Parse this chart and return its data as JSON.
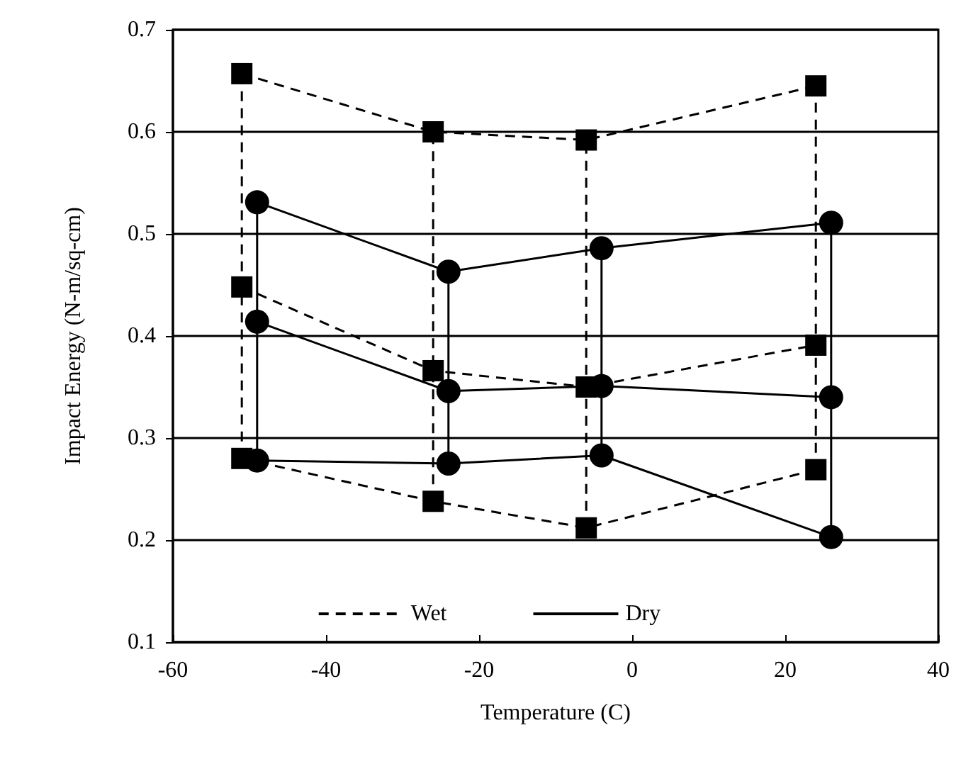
{
  "chart_data": {
    "type": "line",
    "xlabel": "Temperature (C)",
    "ylabel": "Impact Energy (N-m/sq-cm)",
    "xlim": [
      -60,
      40
    ],
    "xticks": [
      -60,
      -40,
      -20,
      0,
      20,
      40
    ],
    "ylim": [
      0.1,
      0.7
    ],
    "yticks": [
      0.1,
      0.2,
      0.3,
      0.4,
      0.5,
      0.6,
      0.7
    ],
    "grid": "y",
    "legend": "bottom",
    "series": [
      {
        "name": "Wet",
        "color": "#000000",
        "marker": "square",
        "line_style": "dashed",
        "x": [
          -51,
          -26,
          -6,
          24
        ],
        "values": [
          0.657,
          0.6,
          0.592,
          0.645
        ]
      },
      {
        "color": "#000000",
        "marker": "square",
        "line_style": "dashed",
        "x": [
          -51,
          -26,
          -6,
          24
        ],
        "values": [
          0.448,
          0.366,
          0.35,
          0.391
        ]
      },
      {
        "color": "#000000",
        "marker": "square",
        "line_style": "dashed",
        "x": [
          -51,
          -26,
          -6,
          24
        ],
        "values": [
          0.28,
          0.238,
          0.212,
          0.269
        ]
      },
      {
        "name": "Dry",
        "color": "#000000",
        "marker": "circle",
        "line_style": "solid",
        "x": [
          -49,
          -24,
          -4,
          26
        ],
        "values": [
          0.531,
          0.463,
          0.486,
          0.511
        ]
      },
      {
        "color": "#000000",
        "marker": "circle",
        "line_style": "solid",
        "x": [
          -49,
          -24,
          -4,
          26
        ],
        "values": [
          0.414,
          0.346,
          0.351,
          0.34
        ]
      },
      {
        "color": "#000000",
        "marker": "circle",
        "line_style": "solid",
        "x": [
          -49,
          -24,
          -4,
          26
        ],
        "values": [
          0.278,
          0.275,
          0.283,
          0.203
        ]
      },
      {
        "color": "#000000",
        "marker": "none",
        "line_style": "dashed",
        "x": [
          -51,
          -51
        ],
        "values": [
          0.28,
          0.657
        ]
      },
      {
        "color": "#000000",
        "marker": "none",
        "line_style": "dashed",
        "x": [
          -26,
          -26
        ],
        "values": [
          0.238,
          0.6
        ]
      },
      {
        "color": "#000000",
        "marker": "none",
        "line_style": "dashed",
        "x": [
          -6,
          -6
        ],
        "values": [
          0.212,
          0.592
        ]
      },
      {
        "color": "#000000",
        "marker": "none",
        "line_style": "dashed",
        "x": [
          24,
          24
        ],
        "values": [
          0.269,
          0.645
        ]
      },
      {
        "color": "#000000",
        "marker": "none",
        "line_style": "solid",
        "x": [
          -49,
          -49
        ],
        "values": [
          0.278,
          0.531
        ]
      },
      {
        "color": "#000000",
        "marker": "none",
        "line_style": "solid",
        "x": [
          -24,
          -24
        ],
        "values": [
          0.275,
          0.463
        ]
      },
      {
        "color": "#000000",
        "marker": "none",
        "line_style": "solid",
        "x": [
          -4,
          -4
        ],
        "values": [
          0.283,
          0.486
        ]
      },
      {
        "color": "#000000",
        "marker": "none",
        "line_style": "solid",
        "x": [
          26,
          26
        ],
        "values": [
          0.203,
          0.511
        ]
      }
    ]
  }
}
